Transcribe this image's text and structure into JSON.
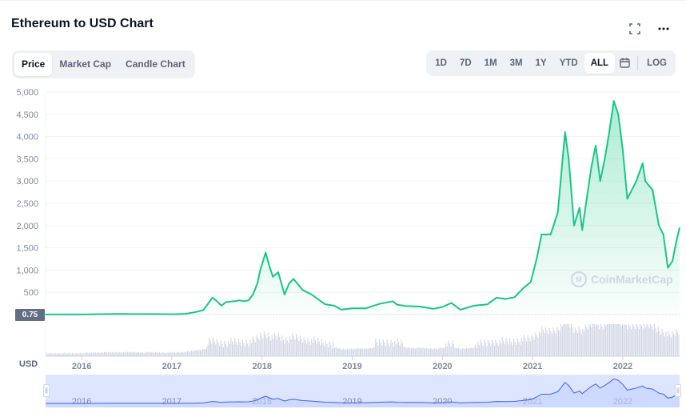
{
  "title": "Ethereum to USD Chart",
  "header_icons": {
    "fullscreen": "fullscreen-icon",
    "more": "more-icon"
  },
  "chart_type_tabs": [
    {
      "label": "Price",
      "active": true
    },
    {
      "label": "Market Cap",
      "active": false
    },
    {
      "label": "Candle Chart",
      "active": false
    }
  ],
  "range_tabs": [
    {
      "label": "1D",
      "active": false
    },
    {
      "label": "7D",
      "active": false
    },
    {
      "label": "1M",
      "active": false
    },
    {
      "label": "3M",
      "active": false
    },
    {
      "label": "1Y",
      "active": false
    },
    {
      "label": "YTD",
      "active": false
    },
    {
      "label": "ALL",
      "active": true
    }
  ],
  "calendar_icon": "calendar-icon",
  "log_label": "LOG",
  "current_price_tag": "0.75",
  "currency_label": "USD",
  "watermark": "CoinMarketCap",
  "colors": {
    "line": "#16c784",
    "area": "#16c784",
    "volume": "#cfd6e4",
    "navigator_line": "#3861fb",
    "navigator_fill": "#dde5ff"
  },
  "chart_data": {
    "type": "area",
    "y_ticks": [
      "500",
      "1,000",
      "1,500",
      "2,000",
      "2,500",
      "3,000",
      "3,500",
      "4,000",
      "4,500",
      "5,000"
    ],
    "ylim": [
      0,
      5000
    ],
    "x_ticks": [
      "2016",
      "2017",
      "2018",
      "2019",
      "2020",
      "2021",
      "2022"
    ],
    "navigator_ticks": [
      "2016",
      "2017",
      "2018",
      "2019",
      "2020",
      "2021",
      "2022"
    ],
    "xlim": [
      2015.6,
      2022.63
    ],
    "grid": true,
    "series": [
      {
        "points": [
          [
            2015.6,
            1
          ],
          [
            2016.0,
            1
          ],
          [
            2016.2,
            9
          ],
          [
            2016.4,
            13
          ],
          [
            2016.6,
            11
          ],
          [
            2016.8,
            10
          ],
          [
            2017.0,
            8
          ],
          [
            2017.15,
            17
          ],
          [
            2017.25,
            50
          ],
          [
            2017.35,
            100
          ],
          [
            2017.45,
            380
          ],
          [
            2017.5,
            300
          ],
          [
            2017.55,
            200
          ],
          [
            2017.6,
            280
          ],
          [
            2017.7,
            300
          ],
          [
            2017.75,
            320
          ],
          [
            2017.8,
            300
          ],
          [
            2017.85,
            320
          ],
          [
            2017.9,
            450
          ],
          [
            2017.95,
            710
          ],
          [
            2017.98,
            1000
          ],
          [
            2018.04,
            1390
          ],
          [
            2018.08,
            1100
          ],
          [
            2018.12,
            850
          ],
          [
            2018.18,
            950
          ],
          [
            2018.25,
            450
          ],
          [
            2018.3,
            700
          ],
          [
            2018.35,
            800
          ],
          [
            2018.45,
            550
          ],
          [
            2018.55,
            450
          ],
          [
            2018.7,
            230
          ],
          [
            2018.8,
            200
          ],
          [
            2018.88,
            110
          ],
          [
            2019.0,
            140
          ],
          [
            2019.15,
            140
          ],
          [
            2019.3,
            240
          ],
          [
            2019.45,
            300
          ],
          [
            2019.5,
            220
          ],
          [
            2019.6,
            190
          ],
          [
            2019.75,
            180
          ],
          [
            2019.9,
            130
          ],
          [
            2020.0,
            170
          ],
          [
            2020.1,
            260
          ],
          [
            2020.2,
            110
          ],
          [
            2020.35,
            200
          ],
          [
            2020.5,
            230
          ],
          [
            2020.6,
            380
          ],
          [
            2020.7,
            350
          ],
          [
            2020.8,
            390
          ],
          [
            2020.9,
            600
          ],
          [
            2020.98,
            730
          ],
          [
            2021.05,
            1300
          ],
          [
            2021.1,
            1800
          ],
          [
            2021.2,
            1800
          ],
          [
            2021.28,
            2300
          ],
          [
            2021.36,
            4100
          ],
          [
            2021.4,
            3500
          ],
          [
            2021.46,
            2000
          ],
          [
            2021.52,
            2400
          ],
          [
            2021.55,
            1900
          ],
          [
            2021.6,
            2600
          ],
          [
            2021.65,
            3300
          ],
          [
            2021.7,
            3800
          ],
          [
            2021.75,
            3000
          ],
          [
            2021.8,
            3500
          ],
          [
            2021.85,
            4100
          ],
          [
            2021.9,
            4800
          ],
          [
            2021.95,
            4500
          ],
          [
            2022.0,
            3700
          ],
          [
            2022.05,
            2600
          ],
          [
            2022.15,
            3000
          ],
          [
            2022.22,
            3400
          ],
          [
            2022.25,
            3000
          ],
          [
            2022.33,
            2800
          ],
          [
            2022.4,
            2000
          ],
          [
            2022.45,
            1800
          ],
          [
            2022.5,
            1050
          ],
          [
            2022.55,
            1200
          ],
          [
            2022.6,
            1700
          ],
          [
            2022.63,
            1950
          ]
        ]
      }
    ]
  }
}
